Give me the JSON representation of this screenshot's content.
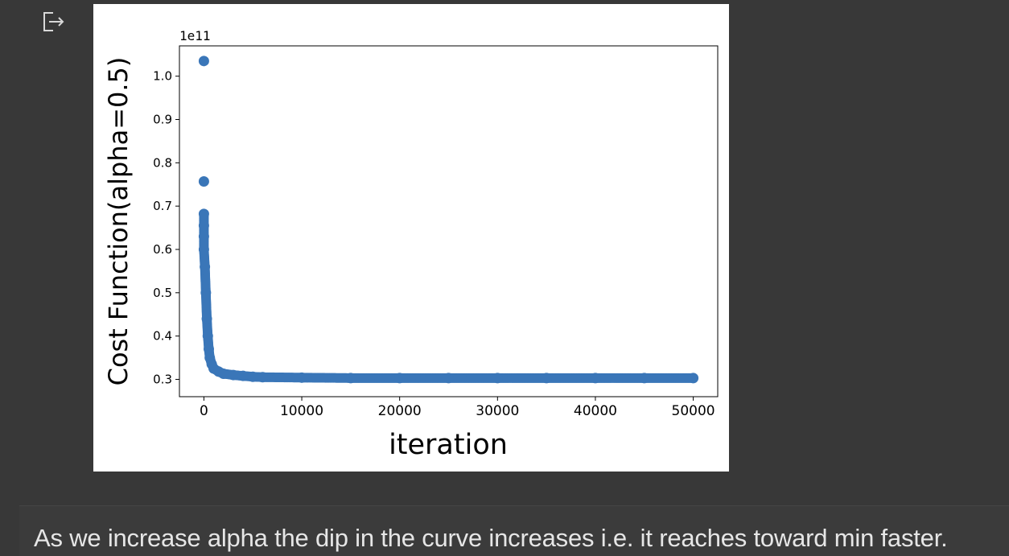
{
  "output_icon": "output-redirect-icon",
  "colors": {
    "background": "#383838",
    "marker": "#3a76b8",
    "axes": "#000000",
    "text": "#e6e6e6"
  },
  "chart_data": {
    "type": "scatter",
    "title": "",
    "xlabel": "iteration",
    "ylabel": "Cost Function(alpha=0.5)",
    "offset_text": "1e11",
    "xlim": [
      -2500,
      52500
    ],
    "ylim": [
      0.26,
      1.07
    ],
    "xticks": [
      0,
      10000,
      20000,
      30000,
      40000,
      50000
    ],
    "xtick_labels": [
      "0",
      "10000",
      "20000",
      "30000",
      "40000",
      "50000"
    ],
    "yticks": [
      0.3,
      0.4,
      0.5,
      0.6,
      0.7,
      0.8,
      0.9,
      1.0
    ],
    "ytick_labels": [
      "0.3",
      "0.4",
      "0.5",
      "0.6",
      "0.7",
      "0.8",
      "0.9",
      "1.0"
    ],
    "grid": false,
    "series": [
      {
        "name": "cost",
        "x": [
          0,
          0,
          0,
          0,
          0,
          0,
          100,
          200,
          300,
          400,
          500,
          600,
          800,
          1000,
          1500,
          2000,
          3000,
          4000,
          5000,
          6000,
          10000,
          15000,
          20000,
          25000,
          30000,
          35000,
          40000,
          45000,
          50000
        ],
        "y": [
          1.035,
          0.757,
          0.682,
          0.655,
          0.63,
          0.6,
          0.56,
          0.5,
          0.44,
          0.4,
          0.37,
          0.35,
          0.335,
          0.325,
          0.318,
          0.313,
          0.31,
          0.308,
          0.306,
          0.305,
          0.304,
          0.303,
          0.303,
          0.303,
          0.303,
          0.303,
          0.303,
          0.303,
          0.303
        ]
      }
    ]
  },
  "markdown": {
    "text": "As we increase alpha the dip in the curve increases i.e. it reaches toward min faster."
  }
}
